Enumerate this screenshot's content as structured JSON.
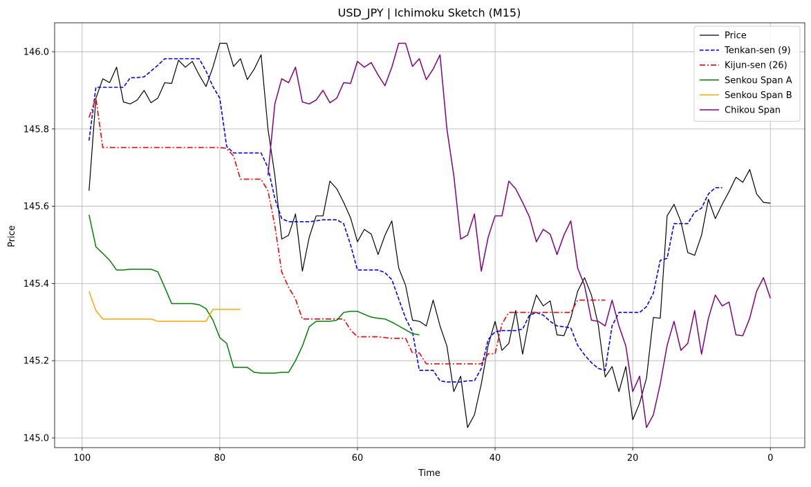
{
  "chart_data": {
    "type": "line",
    "title": "USD_JPY | Ichimoku Sketch (M15)",
    "xlabel": "Time",
    "ylabel": "Price",
    "x_reversed": true,
    "xlim": [
      104,
      -5
    ],
    "ylim": [
      144.975,
      146.075
    ],
    "x_ticks": [
      100,
      80,
      60,
      40,
      20,
      0
    ],
    "y_ticks": [
      145.0,
      145.2,
      145.4,
      145.6,
      145.8,
      146.0
    ],
    "x_tick_labels": [
      "100",
      "80",
      "60",
      "40",
      "20",
      "0"
    ],
    "y_tick_labels": [
      "145.0",
      "145.2",
      "145.4",
      "145.6",
      "145.8",
      "146.0"
    ],
    "grid": true,
    "legend_position": "top-right",
    "series": [
      {
        "name": "Price",
        "color": "#000000",
        "dash": "solid",
        "x_start": 99,
        "values": [
          145.64,
          145.88,
          145.93,
          145.92,
          145.96,
          145.87,
          145.865,
          145.875,
          145.9,
          145.868,
          145.88,
          145.92,
          145.918,
          145.978,
          145.96,
          145.975,
          145.94,
          145.91,
          145.96,
          146.022,
          146.022,
          145.962,
          145.982,
          145.928,
          145.955,
          145.992,
          145.8,
          145.68,
          145.515,
          145.525,
          145.58,
          145.432,
          145.52,
          145.575,
          145.575,
          145.665,
          145.645,
          145.61,
          145.57,
          145.508,
          145.54,
          145.528,
          145.475,
          145.525,
          145.562,
          145.44,
          145.395,
          145.305,
          145.302,
          145.29,
          145.357,
          145.29,
          145.238,
          145.12,
          145.16,
          145.027,
          145.06,
          145.14,
          145.24,
          145.302,
          145.227,
          145.245,
          145.33,
          145.217,
          145.31,
          145.37,
          145.342,
          145.355,
          145.267,
          145.265,
          145.31,
          145.38,
          145.415,
          145.37,
          145.292,
          145.158,
          145.185,
          145.12,
          145.185,
          145.047,
          145.09,
          145.155,
          145.312,
          145.31,
          145.575,
          145.605,
          145.56,
          145.48,
          145.473,
          145.525,
          145.618,
          145.568,
          145.605,
          145.638,
          145.675,
          145.662,
          145.695,
          145.632,
          145.61,
          145.608
        ]
      },
      {
        "name": "Tenkan-sen (9)",
        "color": "#0000ff",
        "dash": "dashed",
        "x_start": 99,
        "values": [
          145.77,
          145.908,
          145.908,
          145.908,
          145.908,
          145.908,
          145.933,
          145.933,
          145.935,
          145.95,
          145.965,
          145.982,
          145.982,
          145.982,
          145.982,
          145.982,
          145.982,
          145.95,
          145.91,
          145.88,
          145.755,
          145.738,
          145.738,
          145.738,
          145.738,
          145.738,
          145.7,
          145.62,
          145.568,
          145.56,
          145.56,
          145.56,
          145.56,
          145.562,
          145.565,
          145.565,
          145.565,
          145.555,
          145.5,
          145.435,
          145.435,
          145.435,
          145.435,
          145.428,
          145.41,
          145.36,
          145.31,
          145.275,
          145.175,
          145.175,
          145.175,
          145.148,
          145.145,
          145.145,
          145.145,
          145.148,
          145.148,
          145.18,
          145.255,
          145.275,
          145.278,
          145.278,
          145.278,
          145.282,
          145.318,
          145.325,
          145.318,
          145.302,
          145.29,
          145.288,
          145.285,
          145.24,
          145.215,
          145.195,
          145.18,
          145.175,
          145.29,
          145.325,
          145.325,
          145.325,
          145.325,
          145.34,
          145.375,
          145.46,
          145.465,
          145.555,
          145.555,
          145.555,
          145.585,
          145.595,
          145.632,
          145.648,
          145.648
        ]
      },
      {
        "name": "Kijun-sen (26)",
        "color": "#ff0000",
        "dash": "dashdot",
        "x_start": 99,
        "values": [
          145.83,
          145.88,
          145.752,
          145.752,
          145.752,
          145.752,
          145.752,
          145.752,
          145.752,
          145.752,
          145.752,
          145.752,
          145.752,
          145.752,
          145.752,
          145.752,
          145.752,
          145.752,
          145.752,
          145.752,
          145.75,
          145.73,
          145.67,
          145.67,
          145.67,
          145.67,
          145.64,
          145.55,
          145.43,
          145.39,
          145.36,
          145.308,
          145.308,
          145.308,
          145.308,
          145.308,
          145.308,
          145.308,
          145.28,
          145.262,
          145.262,
          145.262,
          145.262,
          145.26,
          145.258,
          145.258,
          145.258,
          145.22,
          145.22,
          145.192,
          145.192,
          145.192,
          145.192,
          145.192,
          145.192,
          145.192,
          145.192,
          145.192,
          145.218,
          145.218,
          145.295,
          145.325,
          145.325,
          145.325,
          145.325,
          145.325,
          145.325,
          145.325,
          145.325,
          145.325,
          145.325,
          145.357,
          145.357,
          145.357,
          145.357,
          145.357
        ]
      },
      {
        "name": "Senkou Span A",
        "color": "#008000",
        "dash": "solid",
        "x_start": 99,
        "values": [
          145.578,
          145.495,
          145.478,
          145.46,
          145.435,
          145.435,
          145.437,
          145.437,
          145.437,
          145.437,
          145.43,
          145.39,
          145.348,
          145.348,
          145.348,
          145.348,
          145.345,
          145.335,
          145.305,
          145.26,
          145.245,
          145.183,
          145.183,
          145.183,
          145.17,
          145.168,
          145.168,
          145.168,
          145.17,
          145.17,
          145.2,
          145.238,
          145.288,
          145.302,
          145.302,
          145.302,
          145.305,
          145.325,
          145.328,
          145.328,
          145.32,
          145.313,
          145.31,
          145.308,
          145.3,
          145.29,
          145.28,
          145.27,
          145.267
        ]
      },
      {
        "name": "Senkou Span B",
        "color": "#ffa500",
        "dash": "solid",
        "x_start": 99,
        "values": [
          145.38,
          145.33,
          145.308,
          145.308,
          145.308,
          145.308,
          145.308,
          145.308,
          145.308,
          145.308,
          145.302,
          145.302,
          145.302,
          145.302,
          145.302,
          145.302,
          145.302,
          145.302,
          145.333,
          145.333,
          145.333,
          145.333,
          145.333
        ]
      },
      {
        "name": "Chikou Span",
        "color": "#800080",
        "dash": "solid",
        "x_start": 73,
        "values": [
          145.68,
          145.865,
          145.93,
          145.92,
          145.96,
          145.87,
          145.865,
          145.875,
          145.9,
          145.868,
          145.88,
          145.92,
          145.918,
          145.975,
          145.96,
          145.972,
          145.94,
          145.912,
          145.96,
          146.022,
          146.022,
          145.962,
          145.982,
          145.928,
          145.955,
          145.992,
          145.8,
          145.68,
          145.515,
          145.525,
          145.58,
          145.432,
          145.52,
          145.575,
          145.575,
          145.665,
          145.645,
          145.61,
          145.572,
          145.508,
          145.54,
          145.528,
          145.475,
          145.525,
          145.562,
          145.44,
          145.395,
          145.305,
          145.302,
          145.29,
          145.357,
          145.29,
          145.238,
          145.12,
          145.16,
          145.027,
          145.06,
          145.14,
          145.24,
          145.302,
          145.227,
          145.245,
          145.33,
          145.217,
          145.31,
          145.37,
          145.342,
          145.352,
          145.267,
          145.265,
          145.31,
          145.38,
          145.415,
          145.362
        ]
      }
    ]
  }
}
